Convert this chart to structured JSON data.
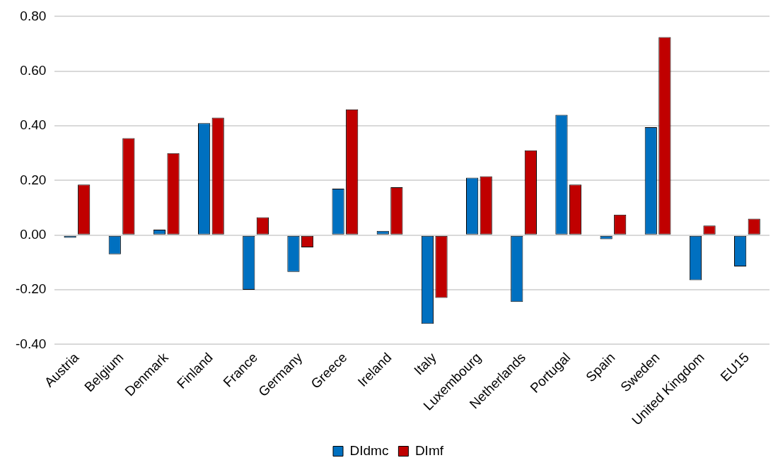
{
  "chart_data": {
    "type": "bar",
    "categories": [
      "Austria",
      "Belgium",
      "Denmark",
      "Finland",
      "France",
      "Germany",
      "Greece",
      "Ireland",
      "Italy",
      "Luxembourg",
      "Netherlands",
      "Portugal",
      "Spain",
      "Sweden",
      "United Kingdom",
      "EU15"
    ],
    "series": [
      {
        "name": "DIdmc",
        "color": "#0070c0",
        "values": [
          -0.01,
          -0.07,
          0.02,
          0.41,
          -0.2,
          -0.135,
          0.17,
          0.015,
          -0.325,
          0.21,
          -0.245,
          0.44,
          -0.015,
          0.395,
          -0.165,
          -0.115
        ]
      },
      {
        "name": "DImf",
        "color": "#c00000",
        "values": [
          0.185,
          0.355,
          0.3,
          0.43,
          0.065,
          -0.045,
          0.46,
          0.175,
          -0.23,
          0.215,
          0.31,
          0.185,
          0.075,
          0.725,
          0.035,
          0.06
        ]
      }
    ],
    "ylim": [
      -0.4,
      0.8
    ],
    "yticks": [
      {
        "value": -0.4,
        "label": "-0.40"
      },
      {
        "value": -0.2,
        "label": "-0.20"
      },
      {
        "value": 0,
        "label": "0.00"
      },
      {
        "value": 0.2,
        "label": "0.20"
      },
      {
        "value": 0.4,
        "label": "0.40"
      },
      {
        "value": 0.6,
        "label": "0.60"
      },
      {
        "value": 0.8,
        "label": "0.80"
      }
    ],
    "grid": "y",
    "legend": "bottom"
  }
}
